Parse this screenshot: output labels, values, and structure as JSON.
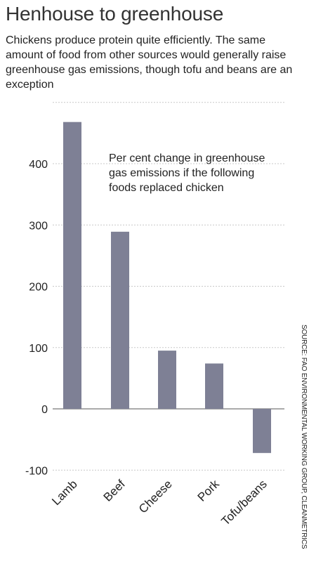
{
  "chart_data": {
    "type": "bar",
    "title": "Henhouse to greenhouse",
    "subtitle": "Chickens produce protein quite efficiently. The same amount of food from other sources would generally raise greenhouse gas emissions, though tofu and beans are an exception",
    "annotation": [
      "Per cent change in greenhouse",
      "gas emissions if the following",
      "foods replaced chicken"
    ],
    "source": "SOURCE: FAO ENVIRONMENTAL WORKING GROUP, CLEANMETRICS",
    "categories": [
      "Lamb",
      "Beef",
      "Cheese",
      "Pork",
      "Tofu/beans"
    ],
    "values": [
      468,
      289,
      95,
      74,
      -72
    ],
    "yticks": [
      400,
      300,
      200,
      100,
      0,
      -100
    ],
    "ylim": [
      -100,
      500
    ],
    "grid": true,
    "bar_color": "#7e8095"
  }
}
